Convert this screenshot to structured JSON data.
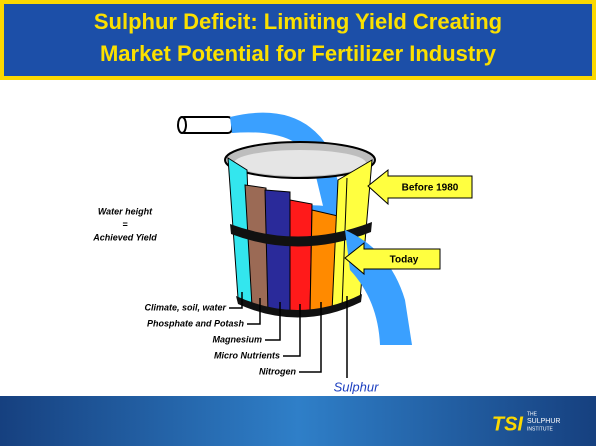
{
  "title": {
    "lines": [
      "Sulphur Deficit: Limiting Yield Creating",
      "Market Potential for Fertilizer Industry"
    ]
  },
  "annotation": {
    "lines": [
      "Water height",
      "=",
      "Achieved Yield"
    ]
  },
  "staves": [
    {
      "label": "Climate, soil, water"
    },
    {
      "label": "Phosphate and Potash"
    },
    {
      "label": "Magnesium"
    },
    {
      "label": "Micro Nutrients"
    },
    {
      "label": "Nitrogen"
    },
    {
      "label": "Sulphur"
    }
  ],
  "arrows": [
    {
      "label": "Before 1980"
    },
    {
      "label": "Today"
    }
  ],
  "footer": {
    "logo": "TSI",
    "lines": [
      "THE",
      "SULPHUR",
      "INSTITUTE"
    ]
  }
}
